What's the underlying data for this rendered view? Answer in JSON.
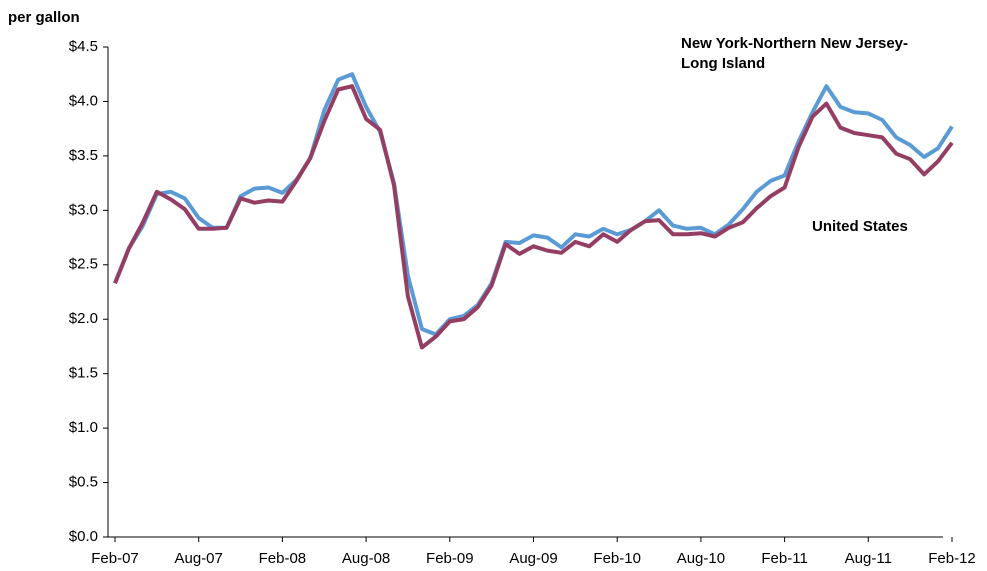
{
  "chart_data": {
    "type": "line",
    "y_axis_label": "per gallon",
    "categories": [
      "Feb-07",
      null,
      null,
      null,
      null,
      null,
      "Aug-07",
      null,
      null,
      null,
      null,
      null,
      "Feb-08",
      null,
      null,
      null,
      null,
      null,
      "Aug-08",
      null,
      null,
      null,
      null,
      null,
      "Feb-09",
      null,
      null,
      null,
      null,
      null,
      "Aug-09",
      null,
      null,
      null,
      null,
      null,
      "Feb-10",
      null,
      null,
      null,
      null,
      null,
      "Aug-10",
      null,
      null,
      null,
      null,
      null,
      "Feb-11",
      null,
      null,
      null,
      null,
      null,
      "Aug-11",
      null,
      null,
      null,
      null,
      null,
      "Feb-12"
    ],
    "series": [
      {
        "name": "New York-Northern New Jersey-Long Island",
        "color": "#5b9bd5",
        "values": [
          2.33,
          2.65,
          2.86,
          3.15,
          3.17,
          3.11,
          2.93,
          2.84,
          2.84,
          3.13,
          3.2,
          3.21,
          3.16,
          3.28,
          3.48,
          3.92,
          4.2,
          4.25,
          3.95,
          3.72,
          3.25,
          2.4,
          1.91,
          1.86,
          2.0,
          2.03,
          2.13,
          2.33,
          2.71,
          2.7,
          2.77,
          2.75,
          2.66,
          2.78,
          2.76,
          2.83,
          2.78,
          2.82,
          2.9,
          3.0,
          2.86,
          2.83,
          2.84,
          2.78,
          2.87,
          3.01,
          3.17,
          3.27,
          3.32,
          3.63,
          3.9,
          4.14,
          3.95,
          3.9,
          3.89,
          3.83,
          3.67,
          3.6,
          3.49,
          3.57,
          3.77
        ]
      },
      {
        "name": "United States",
        "color": "#953e63",
        "values": [
          2.33,
          2.65,
          2.89,
          3.17,
          3.1,
          3.01,
          2.83,
          2.83,
          2.84,
          3.11,
          3.07,
          3.09,
          3.08,
          3.27,
          3.48,
          3.82,
          4.11,
          4.14,
          3.84,
          3.74,
          3.23,
          2.21,
          1.74,
          1.84,
          1.98,
          2.0,
          2.11,
          2.31,
          2.69,
          2.6,
          2.67,
          2.63,
          2.61,
          2.71,
          2.67,
          2.78,
          2.71,
          2.82,
          2.9,
          2.91,
          2.78,
          2.78,
          2.79,
          2.76,
          2.84,
          2.89,
          3.02,
          3.13,
          3.21,
          3.58,
          3.86,
          3.98,
          3.76,
          3.71,
          3.69,
          3.67,
          3.52,
          3.47,
          3.33,
          3.45,
          3.62
        ]
      }
    ],
    "ylim": [
      0,
      4.5
    ],
    "yticks": [
      {
        "value": 0,
        "label": "$0.0"
      },
      {
        "value": 0.5,
        "label": "$0.5"
      },
      {
        "value": 1,
        "label": "$1.0"
      },
      {
        "value": 1.5,
        "label": "$1.5"
      },
      {
        "value": 2,
        "label": "$2.0"
      },
      {
        "value": 2.5,
        "label": "$2.5"
      },
      {
        "value": 3,
        "label": "$3.0"
      },
      {
        "value": 3.5,
        "label": "$3.5"
      },
      {
        "value": 4,
        "label": "$4.0"
      },
      {
        "value": 4.5,
        "label": "$4.5"
      }
    ],
    "grid": false
  }
}
